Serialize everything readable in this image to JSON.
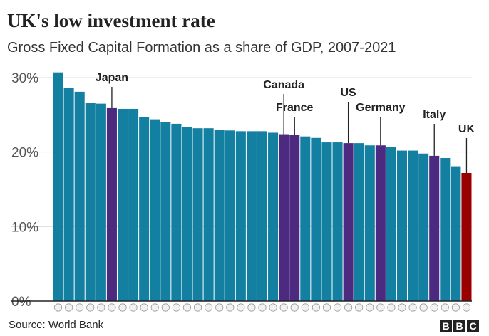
{
  "title": "UK's low investment rate",
  "subtitle": "Gross Fixed Capital Formation as a share of GDP, 2007-2021",
  "source": "Source: World Bank",
  "logo": [
    "B",
    "B",
    "C"
  ],
  "colors": {
    "bar": "#1380a1",
    "highlight": "#4b2a7f",
    "uk": "#9b0000",
    "grid": "#dddddd",
    "axis": "#222222"
  },
  "chart_data": {
    "type": "bar",
    "title": "UK's low investment rate",
    "subtitle": "Gross Fixed Capital Formation as a share of GDP, 2007-2021",
    "xlabel": "",
    "ylabel": "",
    "ylim": [
      0,
      30
    ],
    "yticks": [
      0,
      10,
      20,
      30
    ],
    "ytick_labels": [
      "0%",
      "10%",
      "20%",
      "30%"
    ],
    "grid": true,
    "values": [
      30.7,
      28.6,
      28.1,
      26.6,
      26.5,
      25.9,
      25.8,
      25.8,
      24.7,
      24.4,
      24.0,
      23.8,
      23.4,
      23.2,
      23.2,
      23.0,
      22.9,
      22.8,
      22.8,
      22.8,
      22.6,
      22.4,
      22.3,
      22.1,
      21.9,
      21.3,
      21.3,
      21.2,
      21.2,
      20.9,
      20.9,
      20.7,
      20.2,
      20.2,
      19.8,
      19.5,
      19.2,
      18.1,
      17.2
    ],
    "highlighted": [
      {
        "index": 5,
        "label": "Japan",
        "group": "highlight"
      },
      {
        "index": 21,
        "label": "Canada",
        "group": "highlight"
      },
      {
        "index": 22,
        "label": "France",
        "group": "highlight"
      },
      {
        "index": 27,
        "label": "US",
        "group": "highlight"
      },
      {
        "index": 30,
        "label": "Germany",
        "group": "highlight"
      },
      {
        "index": 35,
        "label": "Italy",
        "group": "highlight"
      },
      {
        "index": 38,
        "label": "UK",
        "group": "uk"
      }
    ]
  }
}
